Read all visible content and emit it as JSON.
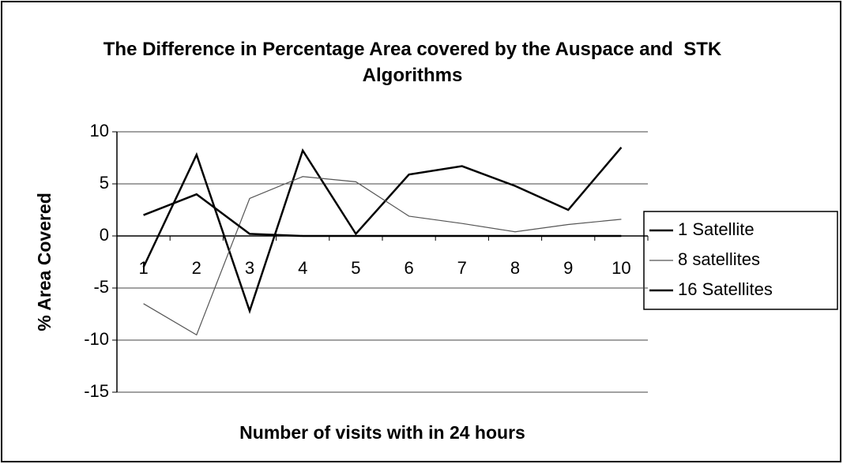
{
  "chart_data": {
    "type": "line",
    "title": "The Difference in Percentage Area covered by the Auspace and  STK Algorithms",
    "x_label": "Number of visits with in 24 hours",
    "y_label": "% Area Covered",
    "categories": [
      "1",
      "2",
      "3",
      "4",
      "5",
      "6",
      "7",
      "8",
      "9",
      "10"
    ],
    "series": [
      {
        "name": "1 Satellite",
        "color": "#000000",
        "values": [
          -3,
          7.8,
          -7.2,
          8.2,
          0.2,
          5.9,
          6.7,
          4.8,
          2.5,
          8.5
        ]
      },
      {
        "name": "8 satellites",
        "color": "#555555",
        "values": [
          -6.5,
          -9.5,
          3.6,
          5.7,
          5.2,
          1.9,
          1.2,
          0.4,
          1.1,
          1.6
        ]
      },
      {
        "name": "16 Satellites",
        "color": "#000000",
        "values": [
          2,
          4,
          0.2,
          0,
          0,
          0,
          0,
          0,
          0,
          0
        ]
      }
    ],
    "ylim": [
      -15,
      10
    ],
    "yticks": [
      -15,
      -10,
      -5,
      0,
      5,
      10
    ],
    "grid": true,
    "legend": "right"
  }
}
